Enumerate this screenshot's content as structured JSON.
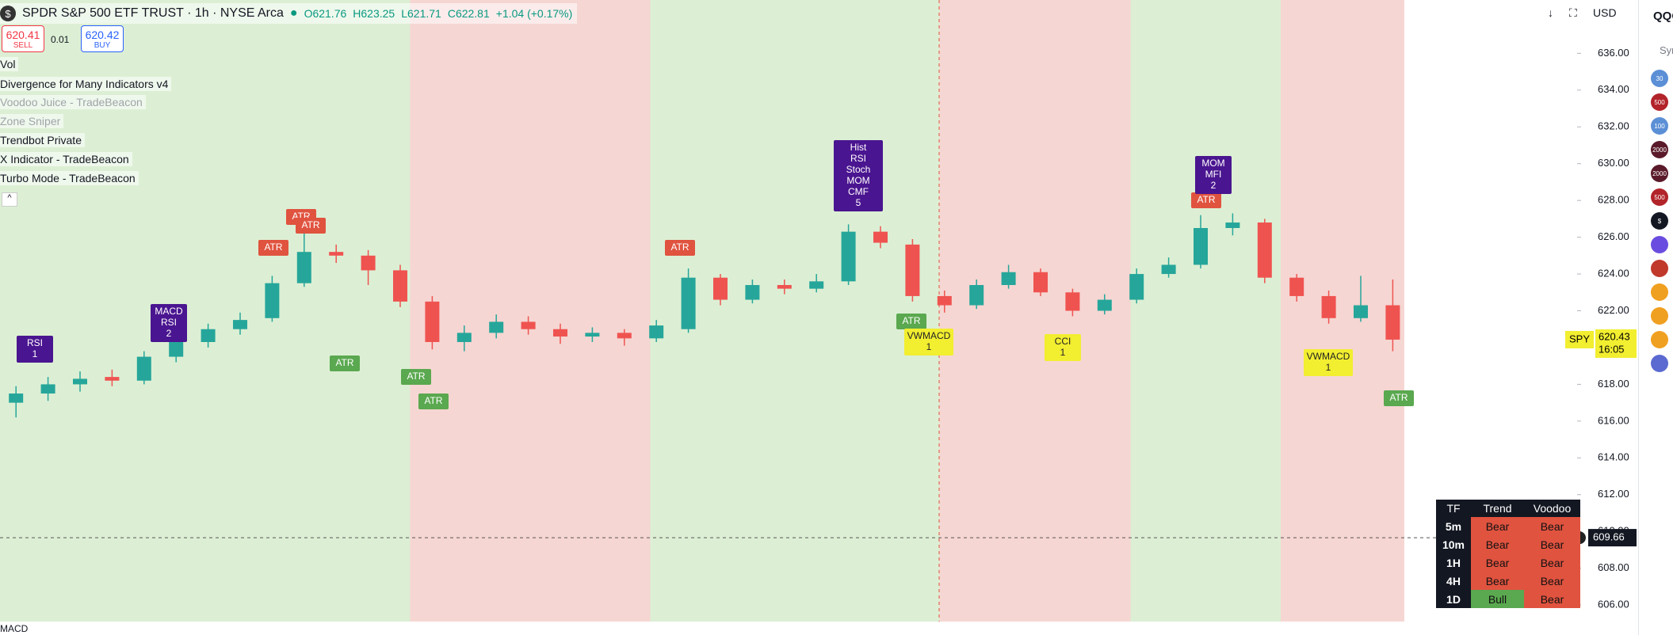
{
  "header": {
    "symbol_icon": "$",
    "title": "SPDR S&P 500 ETF TRUST · 1h · NYSE Arca",
    "ohlc": [
      "O621.76",
      "H623.25",
      "L621.71",
      "C622.81"
    ],
    "change": "+1.04 (+0.17%)"
  },
  "trade": {
    "sell_price": "620.41",
    "sell": "SELL",
    "spread": "0.01",
    "buy_price": "620.42",
    "buy": "BUY"
  },
  "toolbar": {
    "currency": "USD"
  },
  "indicators": [
    "Vol",
    "Divergence for Many Indicators v4",
    "Voodoo Juice - TradeBeacon",
    "Zone Sniper",
    "Trendbot Private",
    "X Indicator - TradeBeacon",
    "Turbo Mode - TradeBeacon"
  ],
  "price_axis": {
    "ylim": [
      605.1,
      638.9
    ],
    "ticks": [
      {
        "value": 636,
        "label": "636.00"
      },
      {
        "value": 634,
        "label": "634.00"
      },
      {
        "value": 632,
        "label": "632.00"
      },
      {
        "value": 630,
        "label": "630.00"
      },
      {
        "value": 628,
        "label": "628.00"
      },
      {
        "value": 626,
        "label": "626.00"
      },
      {
        "value": 624,
        "label": "624.00"
      },
      {
        "value": 622,
        "label": "622.00"
      },
      {
        "value": 620,
        "label": "620.00"
      },
      {
        "value": 618,
        "label": "618.00"
      },
      {
        "value": 616,
        "label": "616.00"
      },
      {
        "value": 614,
        "label": "614.00"
      },
      {
        "value": 612,
        "label": "612.00"
      },
      {
        "value": 610,
        "label": "610.00"
      },
      {
        "value": 608,
        "label": "608.00"
      },
      {
        "value": 606,
        "label": "606.00"
      }
    ],
    "last_symbol": "SPY",
    "last_price": {
      "value": 620.43,
      "label": "620.43"
    },
    "countdown": "16:05",
    "cursor_price": {
      "value": 609.66,
      "label": "609.66"
    }
  },
  "candle_colors": {
    "up": "#26a69a",
    "down": "#ef5350"
  },
  "candles": [
    [
      617.0,
      617.9,
      616.2,
      617.5
    ],
    [
      617.5,
      618.4,
      617.1,
      618.0
    ],
    [
      618.0,
      618.7,
      617.6,
      618.3
    ],
    [
      618.4,
      618.8,
      617.9,
      618.2
    ],
    [
      618.2,
      619.8,
      618.0,
      619.5
    ],
    [
      619.5,
      620.6,
      619.2,
      620.3
    ],
    [
      620.3,
      621.3,
      620.0,
      621.0
    ],
    [
      621.0,
      621.9,
      620.7,
      621.5
    ],
    [
      621.6,
      623.9,
      621.4,
      623.5
    ],
    [
      623.5,
      626.2,
      623.3,
      625.2
    ],
    [
      625.2,
      625.6,
      624.6,
      625.0
    ],
    [
      625.0,
      625.3,
      623.4,
      624.2
    ],
    [
      624.2,
      624.5,
      622.2,
      622.5
    ],
    [
      622.5,
      622.8,
      619.9,
      620.3
    ],
    [
      620.3,
      621.2,
      619.8,
      620.8
    ],
    [
      620.8,
      621.8,
      620.5,
      621.4
    ],
    [
      621.4,
      621.7,
      620.7,
      621.0
    ],
    [
      621.0,
      621.3,
      620.2,
      620.6
    ],
    [
      620.6,
      621.1,
      620.3,
      620.8
    ],
    [
      620.8,
      621.0,
      620.1,
      620.5
    ],
    [
      620.5,
      621.5,
      620.3,
      621.2
    ],
    [
      621.0,
      624.3,
      620.8,
      623.8
    ],
    [
      623.8,
      624.0,
      622.3,
      622.6
    ],
    [
      622.6,
      623.7,
      622.4,
      623.4
    ],
    [
      623.4,
      623.7,
      622.9,
      623.2
    ],
    [
      623.2,
      624.0,
      623.0,
      623.6
    ],
    [
      623.6,
      626.7,
      623.4,
      626.3
    ],
    [
      626.3,
      626.6,
      625.4,
      625.7
    ],
    [
      625.6,
      625.9,
      622.5,
      622.8
    ],
    [
      622.8,
      623.1,
      621.9,
      622.3
    ],
    [
      622.3,
      623.7,
      622.1,
      623.4
    ],
    [
      623.4,
      624.5,
      623.2,
      624.1
    ],
    [
      624.1,
      624.3,
      622.8,
      623.0
    ],
    [
      623.0,
      623.2,
      621.7,
      622.0
    ],
    [
      622.0,
      622.9,
      621.8,
      622.6
    ],
    [
      622.6,
      624.3,
      622.4,
      624.0
    ],
    [
      624.0,
      624.9,
      623.8,
      624.5
    ],
    [
      624.5,
      627.2,
      624.3,
      626.5
    ],
    [
      626.5,
      627.3,
      626.1,
      626.8
    ],
    [
      626.8,
      627.0,
      623.5,
      623.8
    ],
    [
      623.8,
      624.0,
      622.5,
      622.8
    ],
    [
      622.8,
      623.1,
      621.3,
      621.6
    ],
    [
      621.6,
      623.9,
      621.4,
      622.3
    ],
    [
      622.3,
      623.7,
      619.8,
      620.43
    ]
  ],
  "signals": [
    {
      "lines": [
        "RSI",
        "1"
      ],
      "color": "#4a1590"
    },
    {
      "lines": [
        "MACD",
        "RSI",
        "2"
      ],
      "color": "#4a1590"
    },
    {
      "lines": [
        "ATR"
      ],
      "color": "#e0533f"
    },
    {
      "lines": [
        "ATR"
      ],
      "color": "#e0533f"
    },
    {
      "lines": [
        "ATR"
      ],
      "color": "#e0533f"
    },
    {
      "lines": [
        "ATR"
      ],
      "color": "#5aa84f"
    },
    {
      "lines": [
        "ATR"
      ],
      "color": "#5aa84f"
    },
    {
      "lines": [
        "ATR"
      ],
      "color": "#5aa84f"
    },
    {
      "lines": [
        "ATR"
      ],
      "color": "#e0533f"
    },
    {
      "lines": [
        "Hist",
        "RSI",
        "Stoch",
        "MOM",
        "CMF",
        "5"
      ],
      "color": "#4a1590"
    },
    {
      "lines": [
        "ATR"
      ],
      "color": "#5aa84f"
    },
    {
      "lines": [
        "VWMACD",
        "1"
      ],
      "color": "#f2ee30"
    },
    {
      "lines": [
        "CCI",
        "1"
      ],
      "color": "#f2ee30"
    },
    {
      "lines": [
        "ATR"
      ],
      "color": "#e0533f"
    },
    {
      "lines": [
        "MOM",
        "MFI",
        "2"
      ],
      "color": "#4a1590"
    },
    {
      "lines": [
        "VWMACD",
        "1"
      ],
      "color": "#f2ee30"
    },
    {
      "lines": [
        "ATR"
      ],
      "color": "#5aa84f"
    }
  ],
  "table": {
    "header": [
      "TF",
      "Trend",
      "Voodoo"
    ],
    "rows": [
      [
        "5m",
        "Bear",
        "Bear"
      ],
      [
        "10m",
        "Bear",
        "Bear"
      ],
      [
        "1H",
        "Bear",
        "Bear"
      ],
      [
        "4H",
        "Bear",
        "Bear"
      ],
      [
        "1D",
        "Bull",
        "Bear"
      ]
    ]
  },
  "lower_pane": "MACD",
  "sidebar": {
    "title": "QQQ",
    "column": "Sym",
    "symbols": [
      "30",
      "500",
      "100",
      "2000",
      "2000",
      "500",
      "$"
    ]
  }
}
